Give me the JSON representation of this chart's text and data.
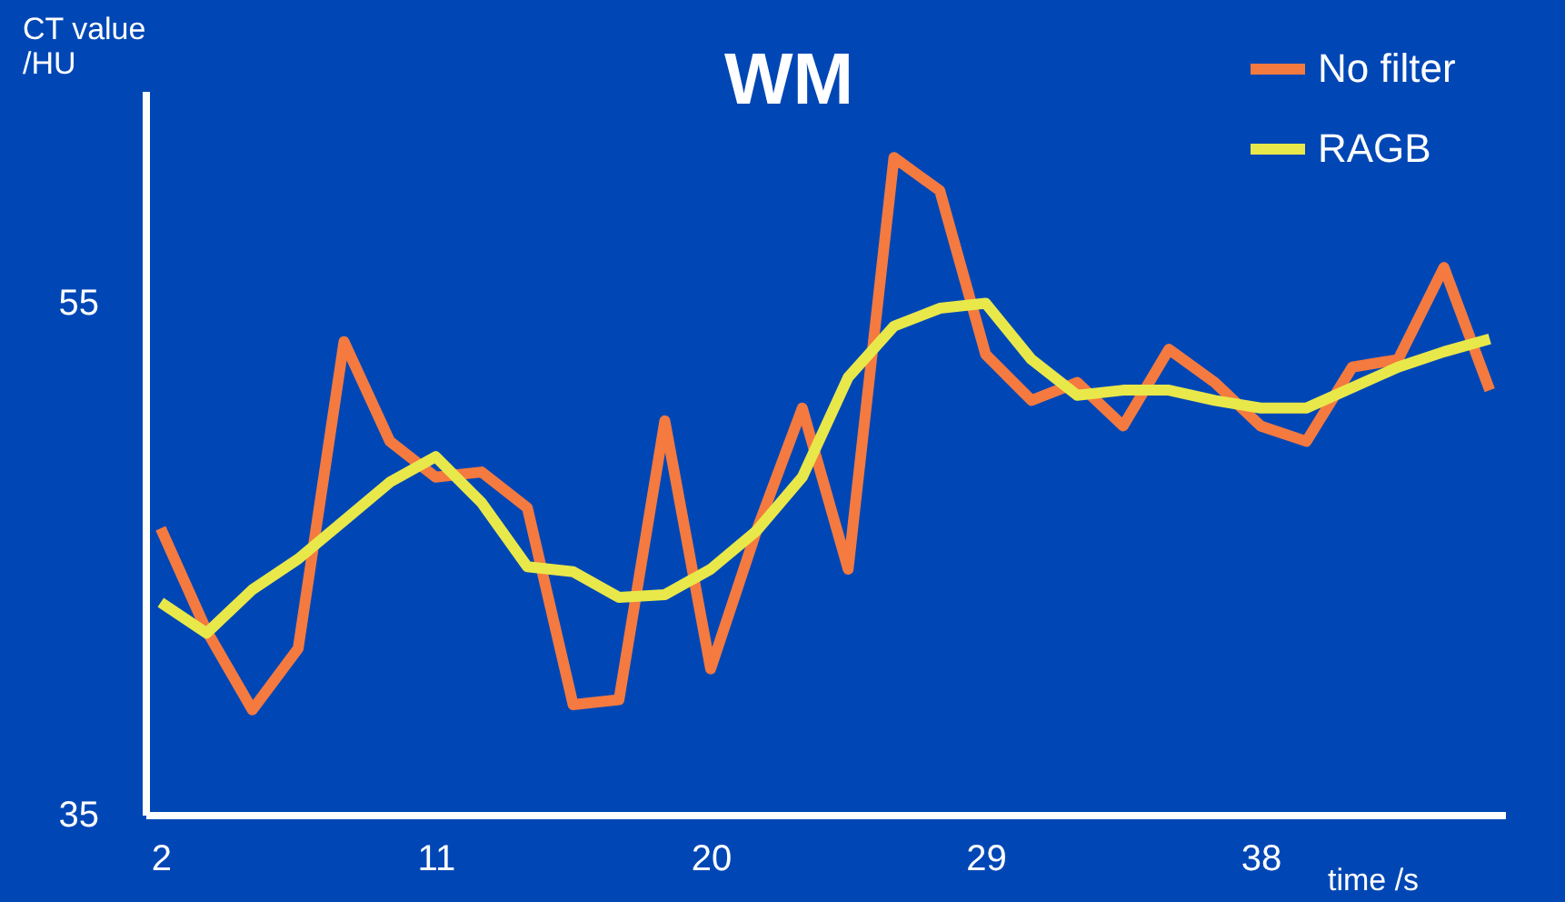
{
  "chart_data": {
    "type": "line",
    "title": "WM",
    "xlabel": "time /s",
    "ylabel": "CT value /HU",
    "x": [
      2,
      3.5,
      5,
      6.5,
      8,
      9.5,
      11,
      12.5,
      14,
      15.5,
      17,
      18.5,
      20,
      21.5,
      23,
      24.5,
      26,
      27.5,
      29,
      30.5,
      32,
      33.5,
      35,
      36.5,
      38,
      39.5,
      41,
      42.5,
      44,
      45.5
    ],
    "series": [
      {
        "name": "No filter",
        "color": "#f47a40",
        "values": [
          46.2,
          42.2,
          39.1,
          41.5,
          53.5,
          49.6,
          48.2,
          48.4,
          47.0,
          39.3,
          39.5,
          50.4,
          40.7,
          46.1,
          50.9,
          44.6,
          60.7,
          59.4,
          53.0,
          51.2,
          51.9,
          50.2,
          53.2,
          51.9,
          50.2,
          49.6,
          52.5,
          52.8,
          56.4,
          51.6
        ]
      },
      {
        "name": "RAGB",
        "color": "#e8e84a",
        "values": [
          43.3,
          42.1,
          43.8,
          45.0,
          46.5,
          48.0,
          49.0,
          47.2,
          44.7,
          44.5,
          43.5,
          43.6,
          44.6,
          46.1,
          48.2,
          52.1,
          54.1,
          54.8,
          55.0,
          52.8,
          51.4,
          51.6,
          51.6,
          51.2,
          50.9,
          50.9,
          51.7,
          52.5,
          53.1,
          53.6
        ]
      }
    ],
    "xlim": [
      1.5,
      46
    ],
    "xticks": [
      2,
      11,
      20,
      29,
      38
    ],
    "ylim": [
      35,
      63.3
    ],
    "yticks": [
      35,
      55
    ],
    "grid": false,
    "legend": "top right",
    "marker": "none",
    "line_style": "solid"
  }
}
